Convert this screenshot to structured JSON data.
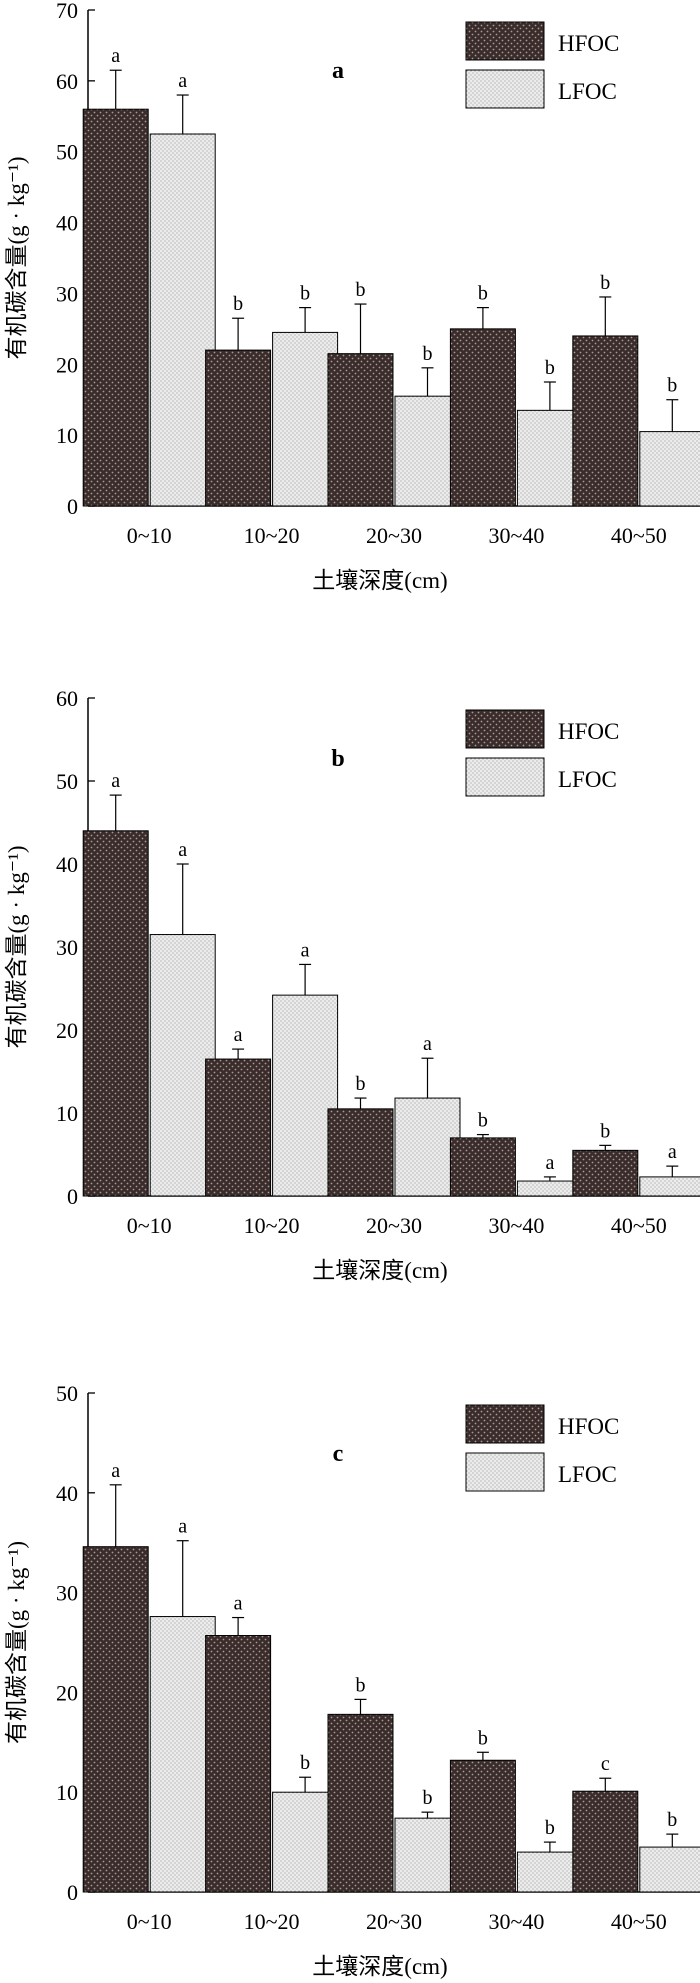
{
  "colors": {
    "hfoc_fill": "#3a2c2c",
    "hfoc_dot": "#a89a8c",
    "lfoc_fill": "#ececec",
    "lfoc_dot": "#7a7a7a",
    "axis": "#000000"
  },
  "chart_data": [
    {
      "type": "bar",
      "panel_label": "a",
      "xlabel": "土壤深度(cm)",
      "ylabel": "有机碳含量(g · kg⁻¹)",
      "ylim": [
        0,
        70
      ],
      "yticks": [
        0,
        10,
        20,
        30,
        40,
        50,
        60,
        70
      ],
      "categories": [
        "0~10",
        "10~20",
        "20~30",
        "30~40",
        "40~50"
      ],
      "legend_position": "top-right",
      "series": [
        {
          "name": "HFOC",
          "values": [
            56,
            22,
            21.5,
            25,
            24
          ],
          "errors": [
            5.5,
            4.5,
            7,
            3,
            5.5
          ],
          "letters": [
            "a",
            "b",
            "b",
            "b",
            "b"
          ]
        },
        {
          "name": "LFOC",
          "values": [
            52.5,
            24.5,
            15.5,
            13.5,
            10.5
          ],
          "errors": [
            5.5,
            3.5,
            4,
            4,
            4.5
          ],
          "letters": [
            "a",
            "b",
            "b",
            "b",
            "b"
          ]
        }
      ]
    },
    {
      "type": "bar",
      "panel_label": "b",
      "xlabel": "土壤深度(cm)",
      "ylabel": "有机碳含量(g · kg⁻¹)",
      "ylim": [
        0,
        60
      ],
      "yticks": [
        0,
        10,
        20,
        30,
        40,
        50,
        60
      ],
      "categories": [
        "0~10",
        "10~20",
        "20~30",
        "30~40",
        "40~50"
      ],
      "legend_position": "top-right",
      "series": [
        {
          "name": "HFOC",
          "values": [
            44,
            16.5,
            10.5,
            7,
            5.5
          ],
          "errors": [
            4.3,
            1.2,
            1.3,
            0.4,
            0.6
          ],
          "letters": [
            "a",
            "a",
            "b",
            "b",
            "b"
          ]
        },
        {
          "name": "LFOC",
          "values": [
            31.5,
            24.2,
            11.8,
            1.8,
            2.3
          ],
          "errors": [
            8.5,
            3.7,
            4.8,
            0.5,
            1.3
          ],
          "letters": [
            "a",
            "a",
            "a",
            "a",
            "a"
          ]
        }
      ]
    },
    {
      "type": "bar",
      "panel_label": "c",
      "xlabel": "土壤深度(cm)",
      "ylabel": "有机碳含量(g · kg⁻¹)",
      "ylim": [
        0,
        50
      ],
      "yticks": [
        0,
        10,
        20,
        30,
        40,
        50
      ],
      "categories": [
        "0~10",
        "10~20",
        "20~30",
        "30~40",
        "40~50"
      ],
      "legend_position": "top-right",
      "series": [
        {
          "name": "HFOC",
          "values": [
            34.6,
            25.7,
            17.8,
            13.2,
            10.1
          ],
          "errors": [
            6.2,
            1.8,
            1.5,
            0.8,
            1.3
          ],
          "letters": [
            "a",
            "a",
            "b",
            "b",
            "c"
          ]
        },
        {
          "name": "LFOC",
          "values": [
            27.6,
            10,
            7.4,
            4,
            4.5
          ],
          "errors": [
            7.6,
            1.5,
            0.6,
            1,
            1.3
          ],
          "letters": [
            "a",
            "b",
            "b",
            "b",
            "b"
          ]
        }
      ]
    }
  ]
}
